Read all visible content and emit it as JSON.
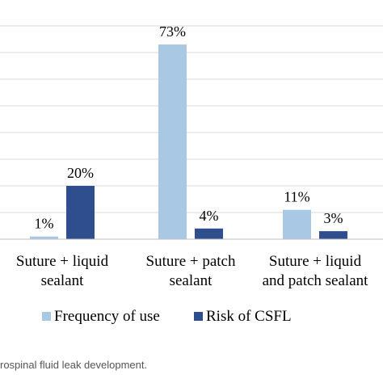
{
  "chart_data": {
    "type": "bar",
    "title": "",
    "xlabel": "",
    "ylabel": "",
    "ylim": [
      0,
      80
    ],
    "grid": true,
    "legend": "bottom",
    "categories": [
      [
        "Suture + liquid",
        "sealant"
      ],
      [
        "Suture + patch",
        "sealant"
      ],
      [
        "Suture + liquid",
        "and patch sealant"
      ]
    ],
    "series": [
      {
        "name": "Frequency of use",
        "values": [
          1,
          73,
          11
        ],
        "labels": [
          "1%",
          "73%",
          "11%"
        ],
        "color": "#a9c8e3"
      },
      {
        "name": "Risk of CSFL",
        "values": [
          20,
          4,
          3
        ],
        "labels": [
          "20%",
          "4%",
          "3%"
        ],
        "color": "#2e4e8e"
      }
    ]
  },
  "caption": "rospinal fluid leak development."
}
